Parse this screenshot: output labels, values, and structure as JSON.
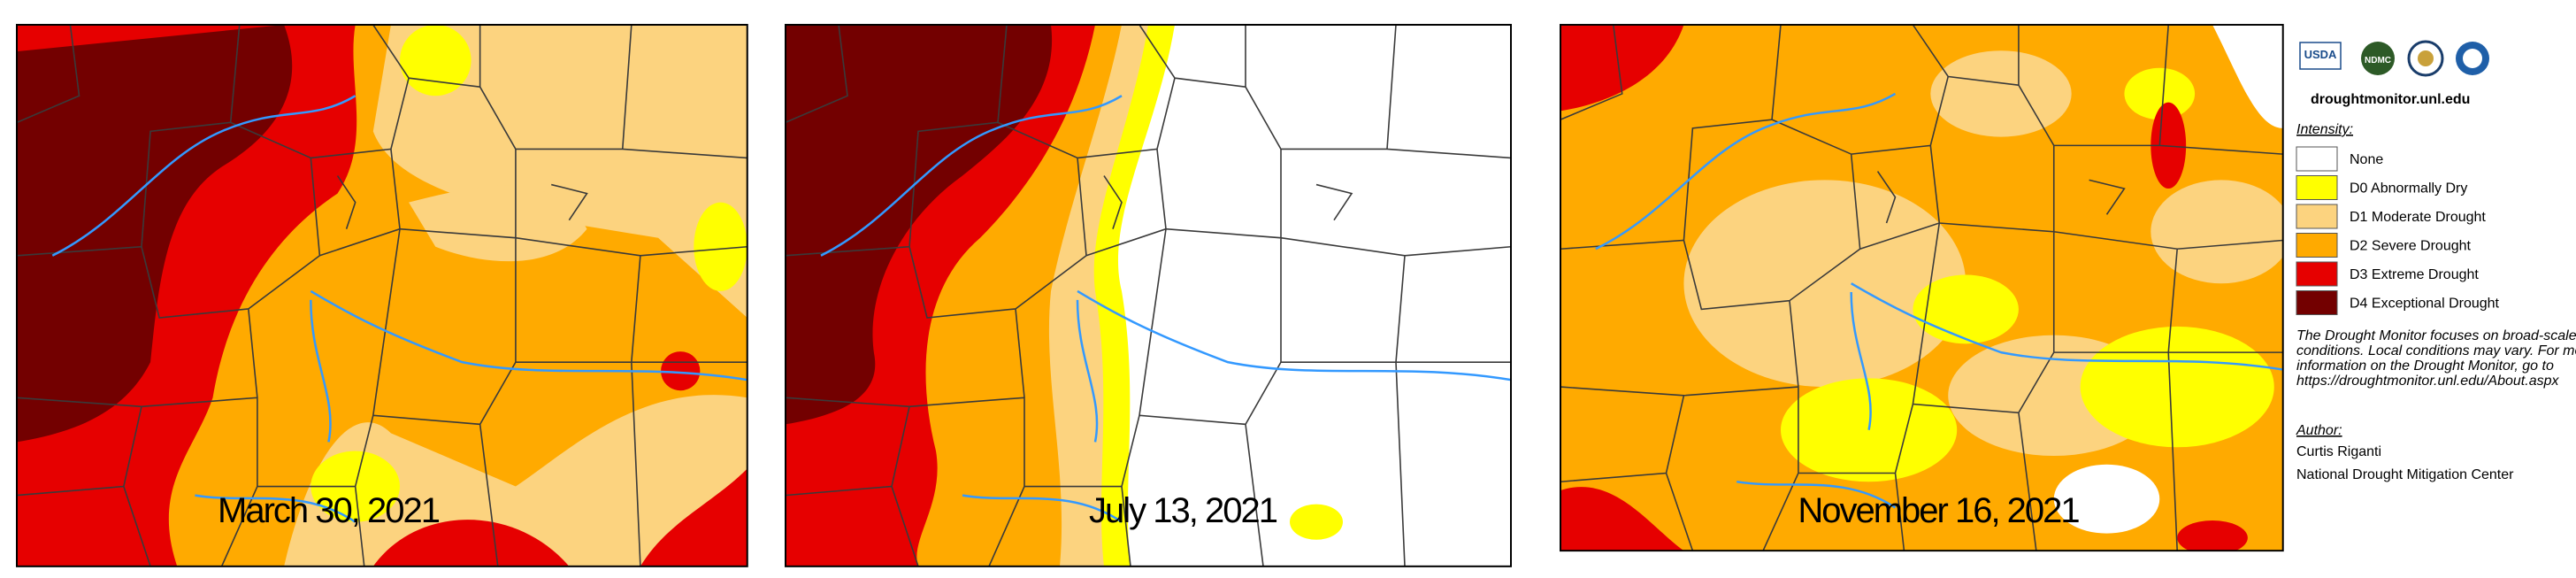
{
  "maps": [
    {
      "date": "March 30, 2021"
    },
    {
      "date": "July 13, 2021"
    },
    {
      "date": "November 16, 2021"
    }
  ],
  "sidebar": {
    "logos": [
      "USDA",
      "NDMC"
    ],
    "url": "droughtmonitor.unl.edu",
    "legend": {
      "title": "Intensity:",
      "items": [
        {
          "label": "None",
          "color": "#ffffff"
        },
        {
          "label": "D0 Abnormally Dry",
          "color": "#ffff00"
        },
        {
          "label": "D1 Moderate Drought",
          "color": "#fcd37f"
        },
        {
          "label": "D2 Severe Drought",
          "color": "#ffaa00"
        },
        {
          "label": "D3 Extreme Drought",
          "color": "#e60000"
        },
        {
          "label": "D4 Exceptional Drought",
          "color": "#730000"
        }
      ]
    },
    "note": [
      "The Drought Monitor focuses on broad-scale",
      "conditions. Local conditions may vary. For more",
      "information on the Drought Monitor, go to",
      "https://droughtmonitor.unl.edu/About.aspx"
    ],
    "author": {
      "title": "Author:",
      "name": "Curtis Riganti",
      "org": "National Drought Mitigation Center"
    }
  }
}
